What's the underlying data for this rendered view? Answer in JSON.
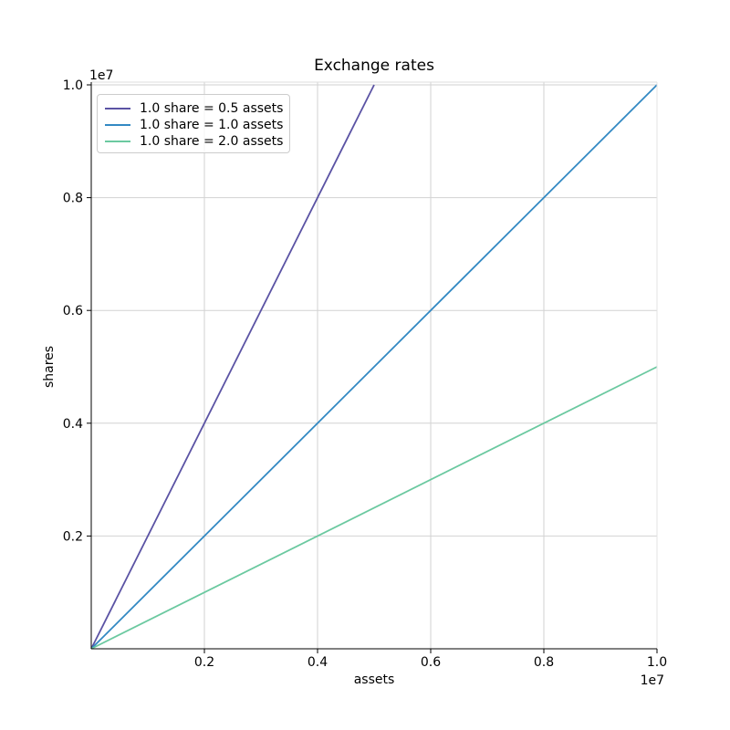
{
  "figure": {
    "background": "#ffffff"
  },
  "chart_data": {
    "type": "line",
    "title": "Exchange rates",
    "xlabel": "assets",
    "ylabel": "shares",
    "x_offset_text": "1e7",
    "y_offset_text": "1e7",
    "xlim": [
      0,
      10000000
    ],
    "ylim": [
      0,
      10000000
    ],
    "xticks": [
      2000000,
      4000000,
      6000000,
      8000000,
      10000000
    ],
    "xtick_labels": [
      "0.2",
      "0.4",
      "0.6",
      "0.8",
      "1.0"
    ],
    "yticks": [
      2000000,
      4000000,
      6000000,
      8000000,
      10000000
    ],
    "ytick_labels": [
      "0.2",
      "0.4",
      "0.6",
      "0.8",
      "1.0"
    ],
    "grid": true,
    "legend_position": "upper left",
    "series": [
      {
        "name": "1.0 share = 0.5 assets",
        "color": "#5b53a4",
        "shares_per_asset": 2.0,
        "x": [
          0,
          5000000
        ],
        "y": [
          0,
          10000000
        ]
      },
      {
        "name": "1.0 share = 1.0 assets",
        "color": "#3389c3",
        "shares_per_asset": 1.0,
        "x": [
          0,
          10000000
        ],
        "y": [
          0,
          10000000
        ]
      },
      {
        "name": "1.0 share = 2.0 assets",
        "color": "#6bc9a0",
        "shares_per_asset": 0.5,
        "x": [
          0,
          10000000
        ],
        "y": [
          0,
          5000000
        ]
      }
    ],
    "colors": {
      "grid": "#d2d2d2",
      "spine_dark": "#000000",
      "spine_light": "#dcdcdc",
      "tick": "#000000",
      "text": "#000000"
    }
  }
}
